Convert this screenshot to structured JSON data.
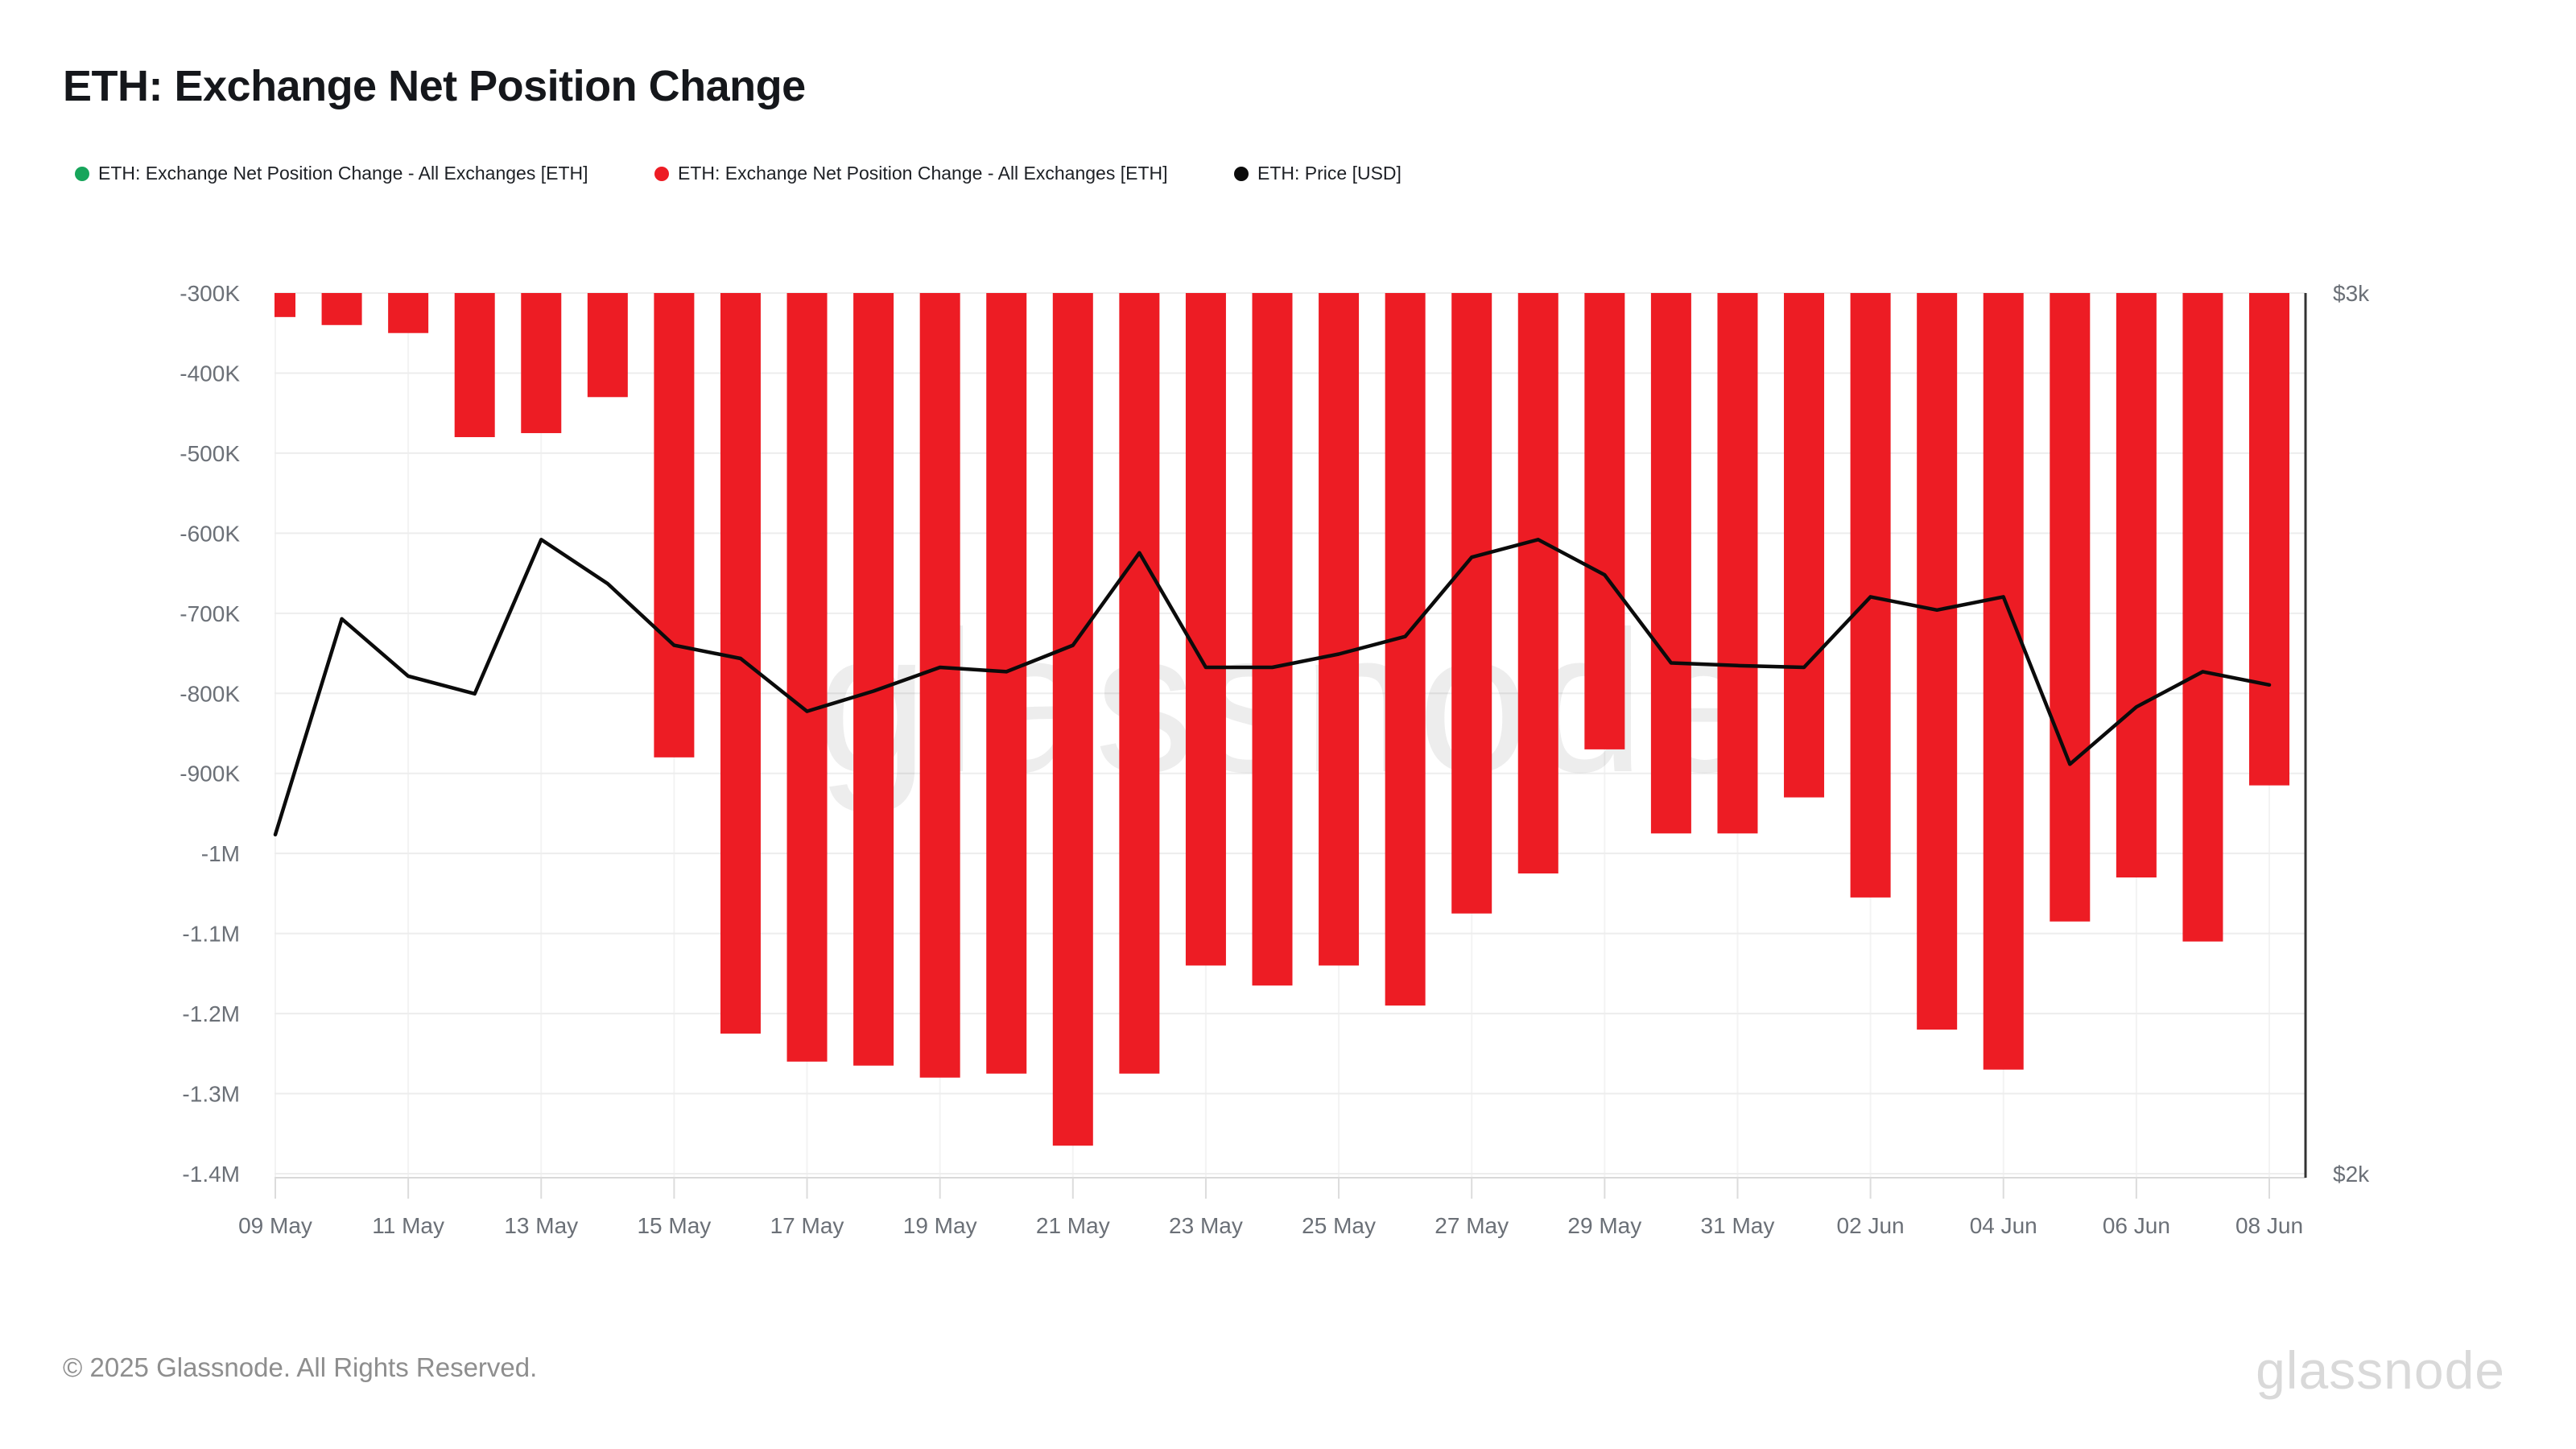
{
  "header": {
    "title": "ETH: Exchange Net Position Change"
  },
  "legend": {
    "items": [
      {
        "label": "ETH: Exchange Net Position Change - All Exchanges [ETH]",
        "color": "#17a55b",
        "marker": "dot"
      },
      {
        "label": "ETH: Exchange Net Position Change - All Exchanges [ETH]",
        "color": "#ed1c24",
        "marker": "dot"
      },
      {
        "label": "ETH: Price [USD]",
        "color": "#0b0b0b",
        "marker": "dot"
      }
    ]
  },
  "chart_data": {
    "type": "bar+line",
    "title": "ETH: Exchange Net Position Change",
    "watermark": "glassnode",
    "legend_position": "top",
    "grid": true,
    "categories": [
      "09 May",
      "10 May",
      "11 May",
      "12 May",
      "13 May",
      "14 May",
      "15 May",
      "16 May",
      "17 May",
      "18 May",
      "19 May",
      "20 May",
      "21 May",
      "22 May",
      "23 May",
      "24 May",
      "25 May",
      "26 May",
      "27 May",
      "28 May",
      "29 May",
      "30 May",
      "31 May",
      "01 Jun",
      "02 Jun",
      "03 Jun",
      "04 Jun",
      "05 Jun",
      "06 Jun",
      "07 Jun",
      "08 Jun"
    ],
    "series": [
      {
        "name": "ETH: Exchange Net Position Change - All Exchanges [ETH]",
        "type": "bar",
        "axis": "left",
        "color": "#ed1c24",
        "values": [
          -330000,
          -340000,
          -350000,
          -480000,
          -475000,
          -430000,
          -880000,
          -1225000,
          -1260000,
          -1265000,
          -1280000,
          -1275000,
          -1365000,
          -1275000,
          -1140000,
          -1165000,
          -1140000,
          -1190000,
          -1075000,
          -1025000,
          -870000,
          -975000,
          -975000,
          -930000,
          -1055000,
          -1220000,
          -1270000,
          -1085000,
          -1030000,
          -1110000,
          -915000
        ]
      },
      {
        "name": "ETH: Price [USD]",
        "type": "line",
        "axis": "right",
        "color": "#0b0b0b",
        "values": [
          2385,
          2630,
          2565,
          2545,
          2720,
          2670,
          2600,
          2585,
          2525,
          2548,
          2575,
          2570,
          2600,
          2705,
          2575,
          2575,
          2590,
          2610,
          2700,
          2720,
          2680,
          2580,
          2577,
          2575,
          2655,
          2640,
          2655,
          2465,
          2530,
          2570,
          2555
        ]
      }
    ],
    "left_axis": {
      "range_top": -300000,
      "range_bottom": -1400000,
      "ticks": [
        {
          "label": "-300K",
          "value": -300000
        },
        {
          "label": "-400K",
          "value": -400000
        },
        {
          "label": "-500K",
          "value": -500000
        },
        {
          "label": "-600K",
          "value": -600000
        },
        {
          "label": "-700K",
          "value": -700000
        },
        {
          "label": "-800K",
          "value": -800000
        },
        {
          "label": "-900K",
          "value": -900000
        },
        {
          "label": "-1M",
          "value": -1000000
        },
        {
          "label": "-1.1M",
          "value": -1100000
        },
        {
          "label": "-1.2M",
          "value": -1200000
        },
        {
          "label": "-1.3M",
          "value": -1300000
        },
        {
          "label": "-1.4M",
          "value": -1400000
        }
      ]
    },
    "right_axis": {
      "range": [
        2000,
        3000
      ],
      "ticks": [
        {
          "label": "$3k",
          "value": 3000
        },
        {
          "label": "$2k",
          "value": 2000
        }
      ]
    },
    "x_axis": {
      "tick_every_days": 2,
      "tick_labels": [
        "09 May",
        "11 May",
        "13 May",
        "15 May",
        "17 May",
        "19 May",
        "21 May",
        "23 May",
        "25 May",
        "27 May",
        "29 May",
        "31 May",
        "02 Jun",
        "04 Jun",
        "06 Jun",
        "08 Jun"
      ]
    }
  },
  "footer": {
    "copyright": "© 2025 Glassnode. All Rights Reserved.",
    "logo_text": "glassnode"
  },
  "colors": {
    "bar_red": "#ed1c24",
    "legend_green": "#17a55b",
    "price_line_black": "#0b0b0b",
    "axis_text_gray": "#6b7077",
    "watermark_gray": "#ebebeb"
  }
}
